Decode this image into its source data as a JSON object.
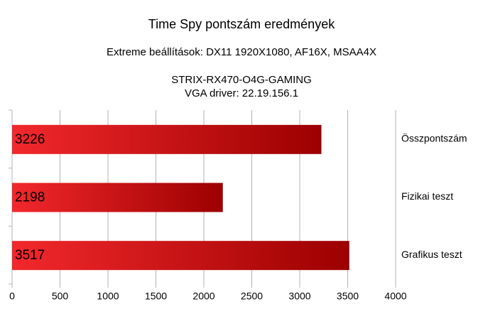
{
  "chart_data": {
    "type": "barh",
    "title": "Time Spy pontszám eredmények",
    "subtitle": [
      "Extreme beállítások: DX11 1920X1080, AF16X, MSAA4X",
      "STRIX-RX470-O4G-GAMING",
      "VGA driver: 22.19.156.1"
    ],
    "categories": [
      "Összpontszám",
      "Fizikai teszt",
      "Grafikus teszt"
    ],
    "values": [
      3226,
      2198,
      3517
    ],
    "gradient": [
      "#f2282c",
      "#9c0000"
    ],
    "xlim": [
      0,
      4000
    ],
    "xticks": [
      0,
      500,
      1000,
      1500,
      2000,
      2500,
      3000,
      3500,
      4000
    ],
    "grid": true
  }
}
